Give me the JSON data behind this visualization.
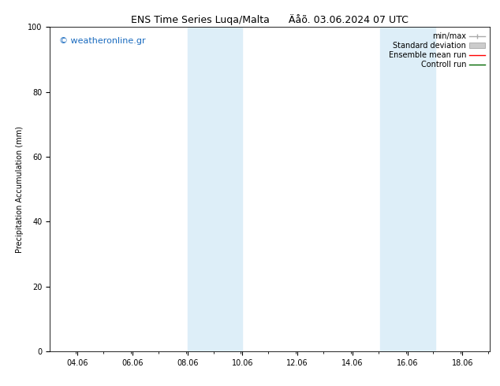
{
  "title": "ENS Time Series Luqa/Malta      Äåõ. 03.06.2024 07 UTC",
  "ylabel": "Precipitation Accumulation (mm)",
  "ylim": [
    0,
    100
  ],
  "yticks": [
    0,
    20,
    40,
    60,
    80,
    100
  ],
  "xlim": [
    3.06,
    19.06
  ],
  "xtick_labels": [
    "04.06",
    "06.06",
    "08.06",
    "10.06",
    "12.06",
    "14.06",
    "16.06",
    "18.06"
  ],
  "xtick_positions": [
    4.06,
    6.06,
    8.06,
    10.06,
    12.06,
    14.06,
    16.06,
    18.06
  ],
  "shaded_regions": [
    {
      "xmin": 8.06,
      "xmax": 10.06
    },
    {
      "xmin": 15.06,
      "xmax": 17.06
    }
  ],
  "shaded_color": "#ddeef8",
  "background_color": "#ffffff",
  "watermark_text": "© weatheronline.gr",
  "watermark_color": "#1a6bbf",
  "legend_entries": [
    {
      "label": "min/max"
    },
    {
      "label": "Standard deviation"
    },
    {
      "label": "Ensemble mean run"
    },
    {
      "label": "Controll run"
    }
  ],
  "legend_colors": [
    "#aaaaaa",
    "#cccccc",
    "#ff0000",
    "#006600"
  ],
  "title_fontsize": 9,
  "axis_label_fontsize": 7,
  "tick_fontsize": 7,
  "watermark_fontsize": 8,
  "legend_fontsize": 7
}
